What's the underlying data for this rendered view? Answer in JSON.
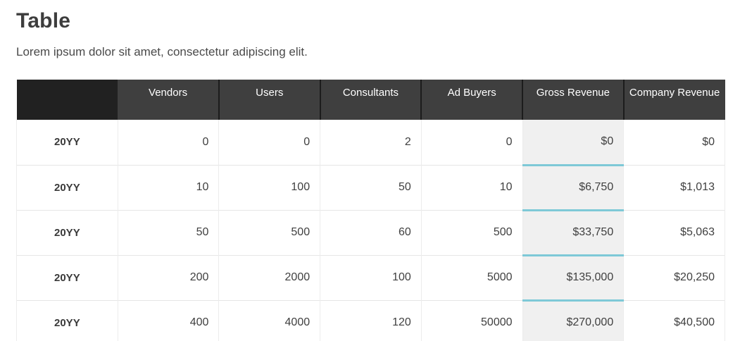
{
  "header": {
    "title": "Table",
    "subtitle": "Lorem ipsum dolor sit amet, consectetur adipiscing elit."
  },
  "table": {
    "columns": [
      "",
      "Vendors",
      "Users",
      "Consultants",
      "Ad Buyers",
      "Gross Revenue",
      "Company Revenue"
    ],
    "rows": [
      {
        "label": "20YY",
        "values": [
          "0",
          "0",
          "2",
          "0",
          "$0",
          "$0"
        ]
      },
      {
        "label": "20YY",
        "values": [
          "10",
          "100",
          "50",
          "10",
          "$6,750",
          "$1,013"
        ]
      },
      {
        "label": "20YY",
        "values": [
          "50",
          "500",
          "60",
          "500",
          "$33,750",
          "$5,063"
        ]
      },
      {
        "label": "20YY",
        "values": [
          "200",
          "2000",
          "100",
          "5000",
          "$135,000",
          "$20,250"
        ]
      },
      {
        "label": "20YY",
        "values": [
          "400",
          "4000",
          "120",
          "50000",
          "$270,000",
          "$40,500"
        ]
      }
    ],
    "colors": {
      "header_corner_bg": "#212121",
      "header_bg": "#3f3f3f",
      "header_text": "#ffffff",
      "highlight_column_bg": "#f0f0f0",
      "highlight_underline": "#7ec9d7",
      "grid_line": "#e6e6e6",
      "body_text": "#3f3f3f"
    }
  }
}
